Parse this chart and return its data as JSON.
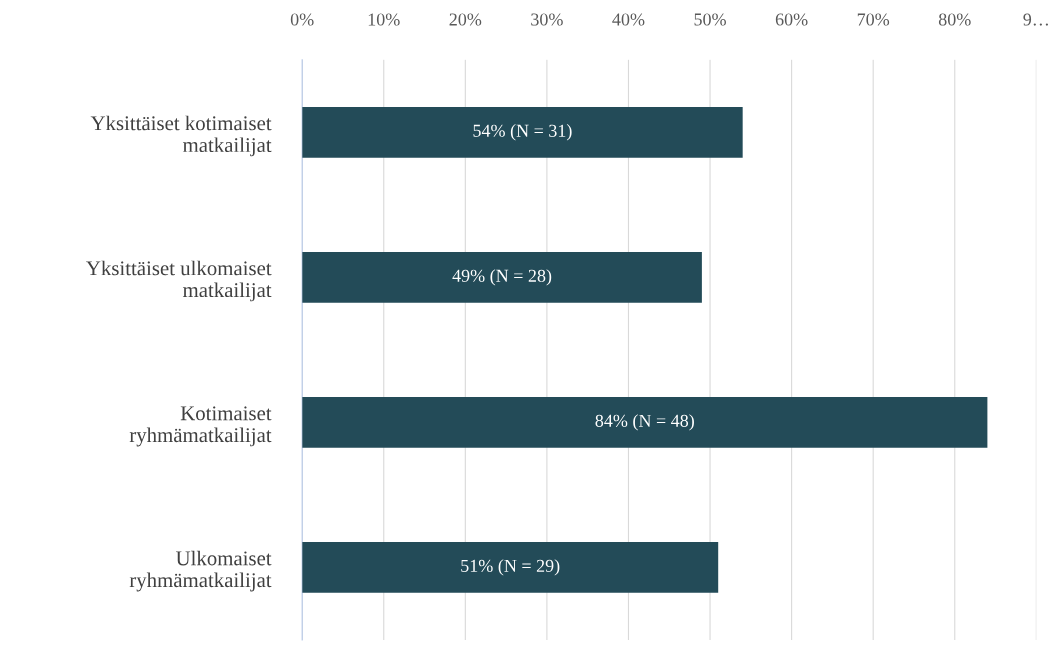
{
  "chart_data": {
    "type": "bar",
    "orientation": "horizontal",
    "categories": [
      "Yksittäiset kotimaiset\nmatkailijat",
      "Yksittäiset ulkomaiset\nmatkailijat",
      "Kotimaiset\nryhmämatkailijat",
      "Ulkomaiset\nryhmämatkailijat"
    ],
    "values": [
      54,
      49,
      84,
      51
    ],
    "value_labels": [
      "54% (N = 31)",
      "49% (N = 28)",
      "84% (N = 48)",
      "51% (N = 29)"
    ],
    "color": "#234b58",
    "xlim": [
      0,
      90
    ],
    "xticks": [
      {
        "value": 0,
        "label": "0%"
      },
      {
        "value": 10,
        "label": "10%"
      },
      {
        "value": 20,
        "label": "20%"
      },
      {
        "value": 30,
        "label": "30%"
      },
      {
        "value": 40,
        "label": "40%"
      },
      {
        "value": 50,
        "label": "50%"
      },
      {
        "value": 60,
        "label": "60%"
      },
      {
        "value": 70,
        "label": "70%"
      },
      {
        "value": 80,
        "label": "80%"
      },
      {
        "value": 90,
        "label": "9…"
      }
    ],
    "grid": "x",
    "legend": false
  }
}
